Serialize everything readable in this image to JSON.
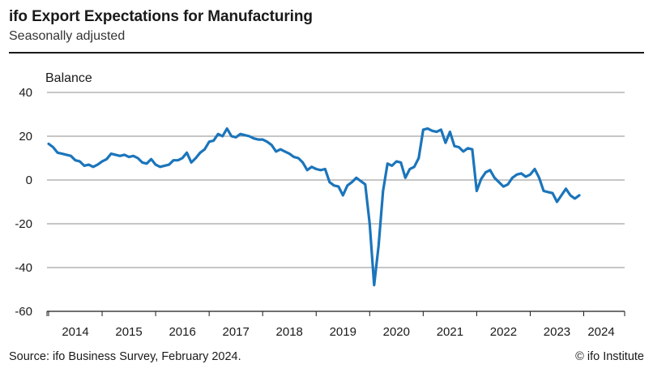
{
  "header": {
    "title": "ifo Export Expectations for Manufacturing",
    "subtitle": "Seasonally adjusted"
  },
  "footer": {
    "source": "Source: ifo Business Survey, February 2024.",
    "copyright": "© ifo Institute"
  },
  "colors": {
    "line": "#1b75bb",
    "grid": "#8c8c8c",
    "axis": "#1a1a1a"
  },
  "chart_data": {
    "type": "line",
    "title": "ifo Export Expectations for Manufacturing",
    "subtitle": "Seasonally adjusted",
    "ylabel": "Balance",
    "xlabel": "",
    "ylim": [
      -60,
      40
    ],
    "yticks": [
      40,
      20,
      0,
      -20,
      -40,
      -60
    ],
    "xticks": [
      "2014",
      "2015",
      "2016",
      "2017",
      "2018",
      "2019",
      "2020",
      "2021",
      "2022",
      "2023",
      "2024"
    ],
    "x_start": "2014-01",
    "x_end": "2024-02",
    "grid": "horizontal",
    "series": [
      {
        "values": [
          16.5,
          15,
          12.5,
          12,
          11.5,
          11,
          9,
          8.5,
          6.5,
          7,
          6,
          7,
          8.5,
          9.5,
          12,
          11.5,
          11,
          11.5,
          10.5,
          11,
          10,
          8,
          7.5,
          9.5,
          7,
          6,
          6.5,
          7,
          9,
          9,
          10,
          12.5,
          8,
          10,
          12.5,
          14,
          17.5,
          18,
          21,
          20,
          23.5,
          20,
          19.5,
          21,
          20.5,
          20,
          19,
          18.5,
          18.5,
          17.5,
          16,
          13,
          14,
          13,
          12,
          10.5,
          10,
          8,
          4.5,
          6,
          5,
          4.5,
          5,
          -1,
          -2.5,
          -3,
          -7,
          -2.5,
          -1,
          1,
          -0.5,
          -2,
          -20,
          -48,
          -30,
          -5,
          7.5,
          6.5,
          8.5,
          8,
          1,
          5,
          6,
          10,
          23,
          23.5,
          22.5,
          22,
          23,
          17,
          22,
          15.5,
          15,
          13,
          14.5,
          14,
          -5,
          0.5,
          3.5,
          4.5,
          1,
          -1,
          -3,
          -2,
          1,
          2.5,
          3,
          1.5,
          2.5,
          5,
          1,
          -5,
          -5.5,
          -6,
          -10,
          -7,
          -4,
          -7,
          -8.5,
          -7
        ]
      }
    ]
  }
}
